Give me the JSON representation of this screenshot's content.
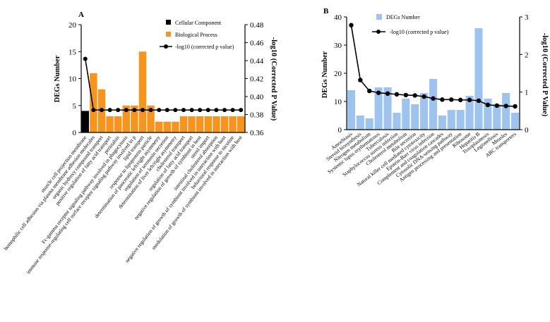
{
  "chart_data": [
    {
      "panel_label": "A",
      "type": "bar+line",
      "categories": [
        "muscle cell projection membrane",
        "homophilic cell adhesion via plasma membrane adhesion molecules",
        "organic hydroxy compound transport",
        "positive regulation of fatty acid transport",
        "peristalsis",
        "Fc-gamma receptor signaling pathway involved in phagocytosis",
        "immune response-regulating cell surface receptor signaling pathway involved in p",
        "lipid transport",
        "response to lipoprotein particle",
        "determination of pancreatic left/right asymmetry",
        "regulation of serotonin secretion",
        "determination of liver left/right asymmetry",
        "cholesterol transport",
        "regulation of fatty acid transport",
        "negative regulation of growth of symbiont in host",
        "sterol import",
        "intestinal cholesterol absorption",
        "negative regulation of growth of symbiont involved in interaction with host",
        "behavioral response to nicotine",
        "modulation of growth of symbiont involved in interaction with host"
      ],
      "bar_colors": [
        "#000000",
        "#f7941d",
        "#f7941d",
        "#f7941d",
        "#f7941d",
        "#f7941d",
        "#f7941d",
        "#f7941d",
        "#f7941d",
        "#f7941d",
        "#f7941d",
        "#f7941d",
        "#f7941d",
        "#f7941d",
        "#f7941d",
        "#f7941d",
        "#f7941d",
        "#f7941d",
        "#f7941d",
        "#f7941d"
      ],
      "values": [
        4,
        11,
        8,
        3,
        3,
        5,
        5,
        15,
        5,
        2,
        2,
        2,
        3,
        3,
        3,
        3,
        3,
        3,
        3,
        3
      ],
      "line_values": [
        0.442,
        0.385,
        0.385,
        0.385,
        0.385,
        0.385,
        0.385,
        0.385,
        0.385,
        0.385,
        0.385,
        0.385,
        0.385,
        0.385,
        0.385,
        0.385,
        0.385,
        0.385,
        0.385,
        0.385
      ],
      "ylabel": "DEGs Number",
      "ylim": [
        0,
        20
      ],
      "yticks": [
        "0",
        "5",
        "10",
        "15",
        "20"
      ],
      "y2label": "-log10 (Corrected P Value)",
      "y2lim": [
        0.36,
        0.48
      ],
      "y2ticks": [
        "0.36",
        "0.38",
        "0.40",
        "0.42",
        "0.44",
        "0.46",
        "0.48"
      ],
      "legend": [
        {
          "label": "Cellular Component",
          "kind": "bar",
          "color": "#000000"
        },
        {
          "label": "Biological Process",
          "kind": "bar",
          "color": "#f7941d"
        },
        {
          "label": "-log10 (corrected p value)",
          "kind": "line",
          "color": "#000000"
        }
      ]
    },
    {
      "panel_label": "B",
      "type": "bar+line",
      "categories": [
        "Amoebiasis",
        "Steroid biosynthesis",
        "Nitrogen metabolism",
        "Systemic lupus erythematosus",
        "Tuberculosis",
        "Staphylococcus aureus infection",
        "Cholesterol metabolism",
        "Bile secretion",
        "Natural killer cell mediated cytotoxicity",
        "Epstein-Barr virus infection",
        "Complement and coagulation cascades",
        "Cytosolic DNA-sensing pathway",
        "Antigen processing and presentation",
        "Ribosome",
        "Hepatitis B",
        "Toxoplasmosis",
        "Legionellosis",
        "Measles",
        "ABC transporters"
      ],
      "bar_color": "#9dc3ee",
      "values": [
        14,
        5,
        4,
        15,
        15,
        6,
        11,
        9,
        13,
        18,
        5,
        7,
        7,
        12,
        36,
        11,
        9,
        13,
        6
      ],
      "line_values": [
        2.78,
        1.32,
        1.03,
        0.98,
        0.96,
        0.94,
        0.92,
        0.91,
        0.88,
        0.83,
        0.8,
        0.8,
        0.79,
        0.79,
        0.77,
        0.66,
        0.64,
        0.63,
        0.62
      ],
      "ylabel": "DEGs Number",
      "ylim": [
        0,
        40
      ],
      "yticks": [
        "0",
        "10",
        "20",
        "30",
        "40"
      ],
      "y2label": "-log10 (Corrected P Value)",
      "y2lim": [
        0,
        3
      ],
      "y2ticks": [
        "0",
        "1",
        "2",
        "3"
      ],
      "legend": [
        {
          "label": "DEGs Number",
          "kind": "bar",
          "color": "#9dc3ee"
        },
        {
          "label": "-log10 (corrected p value)",
          "kind": "line",
          "color": "#000000"
        }
      ]
    }
  ]
}
